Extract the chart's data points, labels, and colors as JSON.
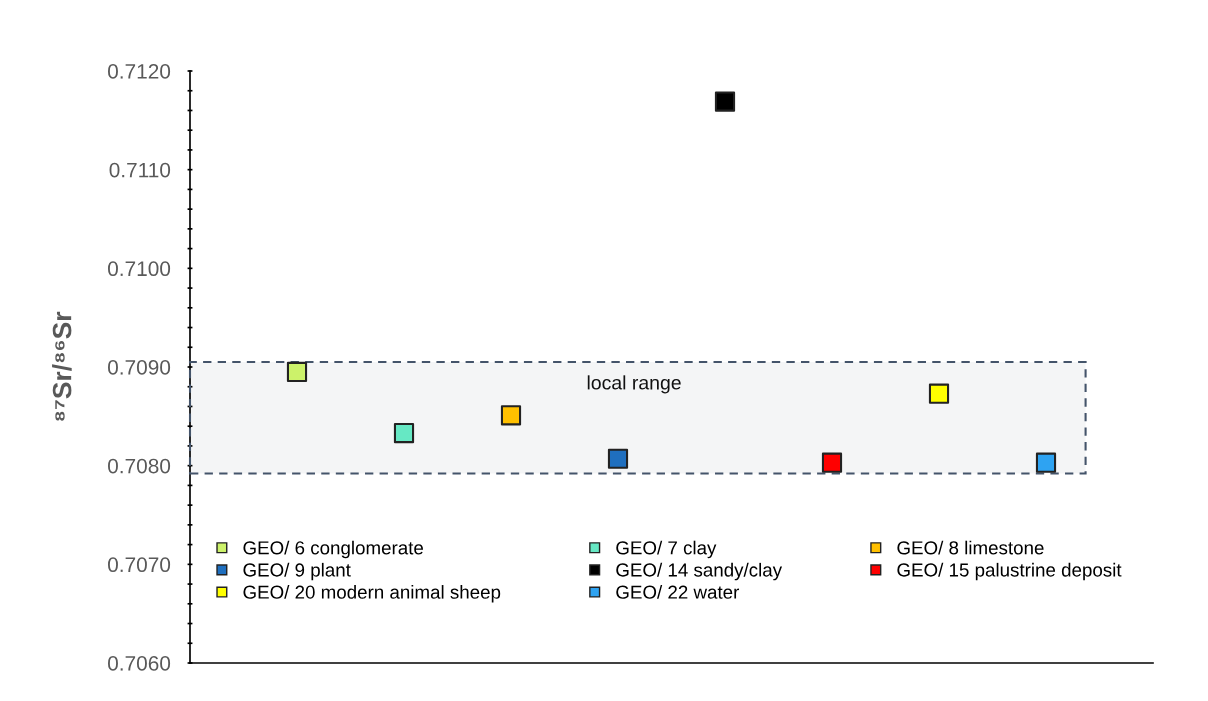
{
  "chart_data": {
    "type": "scatter",
    "ylabel": "⁸⁷Sr/⁸⁶Sr",
    "categories": [
      null,
      null,
      null,
      null,
      null,
      null,
      null,
      null
    ],
    "series": [
      {
        "name": "GEO/ 6 conglomerate",
        "color": "#ccf26a",
        "values": [
          0.70895,
          null,
          null,
          null,
          null,
          null,
          null,
          null
        ]
      },
      {
        "name": "GEO/ 7 clay",
        "color": "#66e8c4",
        "values": [
          null,
          0.70833,
          null,
          null,
          null,
          null,
          null,
          null
        ]
      },
      {
        "name": "GEO/ 8 limestone",
        "color": "#ffc000",
        "values": [
          null,
          null,
          0.70851,
          null,
          null,
          null,
          null,
          null
        ]
      },
      {
        "name": "GEO/ 9 plant",
        "color": "#1f6fbf",
        "values": [
          null,
          null,
          null,
          0.70807,
          null,
          null,
          null,
          null
        ]
      },
      {
        "name": "GEO/ 14 sandy/clay",
        "color": "#000000",
        "values": [
          null,
          null,
          null,
          null,
          0.71169,
          null,
          null,
          null
        ]
      },
      {
        "name": "GEO/ 15 palustrine deposit",
        "color": "#ff0000",
        "values": [
          null,
          null,
          null,
          null,
          null,
          0.70803,
          null,
          null
        ]
      },
      {
        "name": "GEO/ 20 modern animal sheep",
        "color": "#ffff00",
        "values": [
          null,
          null,
          null,
          null,
          null,
          null,
          0.70873,
          null
        ]
      },
      {
        "name": "GEO/ 22 water",
        "color": "#2ea3f2",
        "values": [
          null,
          null,
          null,
          null,
          null,
          null,
          null,
          0.70803
        ]
      }
    ],
    "ylim": [
      0.706,
      0.712
    ],
    "yticks": [
      {
        "value": 0.706,
        "label": "0.7060"
      },
      {
        "value": 0.7062,
        "label": null
      },
      {
        "value": 0.7064,
        "label": null
      },
      {
        "value": 0.7066,
        "label": null
      },
      {
        "value": 0.7068,
        "label": null
      },
      {
        "value": 0.707,
        "label": "0.7070"
      },
      {
        "value": 0.7072,
        "label": null
      },
      {
        "value": 0.7074,
        "label": null
      },
      {
        "value": 0.7076,
        "label": null
      },
      {
        "value": 0.7078,
        "label": null
      },
      {
        "value": 0.708,
        "label": "0.7080"
      },
      {
        "value": 0.7082,
        "label": null
      },
      {
        "value": 0.7084,
        "label": null
      },
      {
        "value": 0.7086,
        "label": null
      },
      {
        "value": 0.7088,
        "label": null
      },
      {
        "value": 0.709,
        "label": "0.7090"
      },
      {
        "value": 0.7092,
        "label": null
      },
      {
        "value": 0.7094,
        "label": null
      },
      {
        "value": 0.7096,
        "label": null
      },
      {
        "value": 0.7098,
        "label": null
      },
      {
        "value": 0.71,
        "label": "0.7100"
      },
      {
        "value": 0.7102,
        "label": null
      },
      {
        "value": 0.7104,
        "label": null
      },
      {
        "value": 0.7106,
        "label": null
      },
      {
        "value": 0.7108,
        "label": null
      },
      {
        "value": 0.711,
        "label": "0.7110"
      },
      {
        "value": 0.7112,
        "label": null
      },
      {
        "value": 0.7114,
        "label": null
      },
      {
        "value": 0.7116,
        "label": null
      },
      {
        "value": 0.7118,
        "label": null
      },
      {
        "value": 0.712,
        "label": "0.7120"
      }
    ],
    "bands": [
      {
        "axis": "y",
        "from": 0.70792,
        "to": 0.70905,
        "label": "local range",
        "color": "#44546a"
      }
    ],
    "marker": "square",
    "grid": false,
    "legend": "bottom",
    "tick_labels": "y"
  }
}
